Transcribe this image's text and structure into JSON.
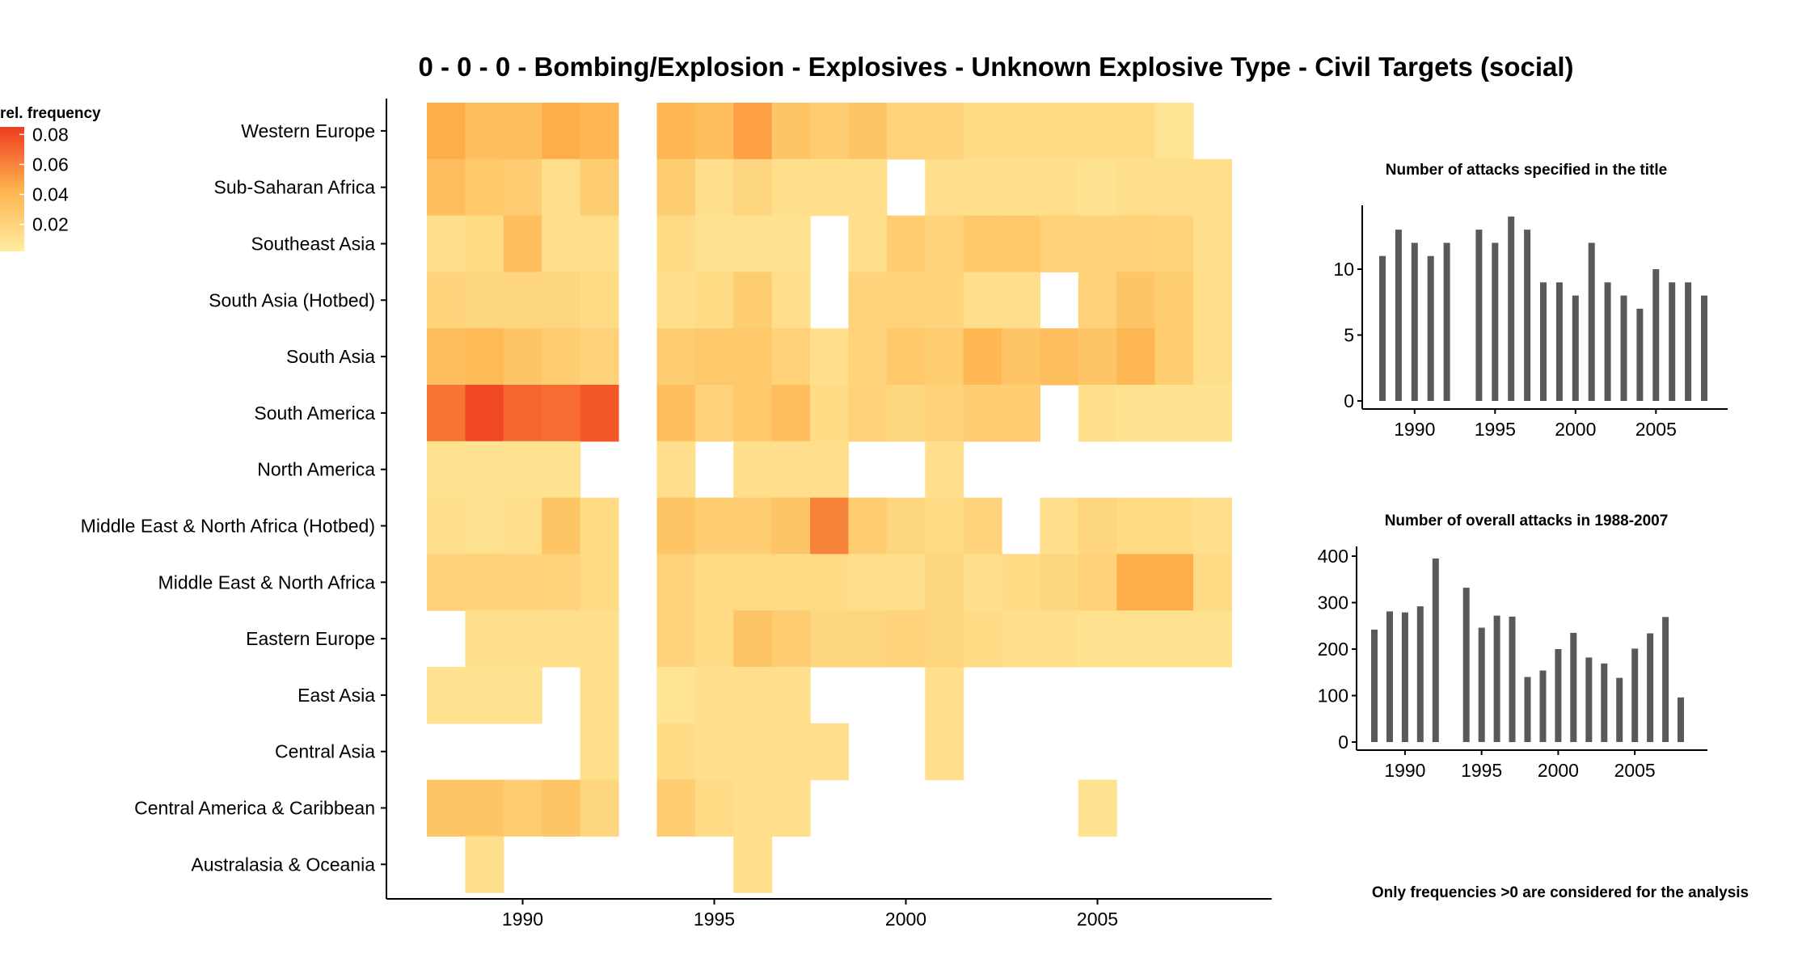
{
  "chart_data": [
    {
      "type": "heatmap",
      "title": "0 - 0 - 0 - Bombing/Explosion - Explosives - Unknown Explosive Type - Civil Targets (social)",
      "xlabel": "",
      "ylabel": "",
      "xlim": [
        1987.5,
        2008.5
      ],
      "x_ticks": [
        1990,
        1995,
        2000,
        2005
      ],
      "years": [
        1988,
        1989,
        1990,
        1991,
        1992,
        1993,
        1994,
        1995,
        1996,
        1997,
        1998,
        1999,
        2000,
        2001,
        2002,
        2003,
        2004,
        2005,
        2006,
        2007,
        2008
      ],
      "rows": [
        "Western Europe",
        "Sub-Saharan Africa",
        "Southeast Asia",
        "South Asia (Hotbed)",
        "South Asia",
        "South America",
        "North America",
        "Middle East & North Africa (Hotbed)",
        "Middle East & North Africa",
        "Eastern Europe",
        "East Asia",
        "Central Asia",
        "Central America & Caribbean",
        "Australasia & Oceania"
      ],
      "values": [
        [
          0.045,
          0.035,
          0.035,
          0.045,
          0.04,
          null,
          0.04,
          0.035,
          0.05,
          0.03,
          0.025,
          0.03,
          0.02,
          0.02,
          0.015,
          0.015,
          0.015,
          0.015,
          0.015,
          0.008,
          null
        ],
        [
          0.035,
          0.028,
          0.025,
          0.012,
          0.025,
          null,
          0.025,
          0.012,
          0.018,
          0.012,
          0.012,
          0.012,
          null,
          0.012,
          0.012,
          0.012,
          0.012,
          0.01,
          0.012,
          0.012,
          0.012
        ],
        [
          0.012,
          0.015,
          0.035,
          0.012,
          0.012,
          null,
          0.015,
          0.01,
          0.01,
          0.01,
          null,
          0.012,
          0.025,
          0.02,
          0.028,
          0.028,
          0.022,
          0.022,
          0.022,
          0.02,
          0.012
        ],
        [
          0.02,
          0.018,
          0.018,
          0.018,
          0.015,
          null,
          0.012,
          0.015,
          0.025,
          0.012,
          null,
          0.02,
          0.02,
          0.02,
          0.012,
          0.012,
          null,
          0.022,
          0.03,
          0.025,
          0.012
        ],
        [
          0.035,
          0.038,
          0.03,
          0.025,
          0.022,
          null,
          0.025,
          0.028,
          0.028,
          0.022,
          0.012,
          0.02,
          0.028,
          0.025,
          0.04,
          0.03,
          0.035,
          0.03,
          0.04,
          0.025,
          0.012
        ],
        [
          0.065,
          0.08,
          0.07,
          0.068,
          0.075,
          null,
          0.035,
          0.022,
          0.028,
          0.035,
          0.015,
          0.022,
          0.018,
          0.022,
          0.025,
          0.025,
          null,
          0.012,
          0.01,
          0.01,
          0.01
        ],
        [
          0.01,
          0.01,
          0.01,
          0.01,
          null,
          null,
          0.012,
          null,
          0.012,
          0.012,
          0.012,
          null,
          null,
          0.012,
          null,
          null,
          null,
          null,
          null,
          null,
          null
        ],
        [
          0.012,
          0.01,
          0.012,
          0.03,
          0.015,
          null,
          0.03,
          0.025,
          0.025,
          0.03,
          0.06,
          0.025,
          0.018,
          0.015,
          0.02,
          null,
          0.012,
          0.018,
          0.015,
          0.015,
          0.012
        ],
        [
          0.022,
          0.022,
          0.022,
          0.02,
          0.015,
          null,
          0.02,
          0.015,
          0.015,
          0.015,
          0.015,
          0.012,
          0.012,
          0.018,
          0.012,
          0.015,
          0.018,
          0.022,
          0.045,
          0.045,
          0.015
        ],
        [
          null,
          0.012,
          0.012,
          0.012,
          0.012,
          null,
          0.02,
          0.015,
          0.03,
          0.025,
          0.018,
          0.018,
          0.02,
          0.018,
          0.015,
          0.012,
          0.012,
          0.01,
          0.01,
          0.01,
          0.01
        ],
        [
          0.01,
          0.01,
          0.01,
          null,
          0.012,
          null,
          0.008,
          0.012,
          0.012,
          0.012,
          null,
          null,
          null,
          0.012,
          null,
          null,
          null,
          null,
          null,
          null,
          null
        ],
        [
          null,
          null,
          null,
          null,
          0.012,
          null,
          0.015,
          0.012,
          0.012,
          0.012,
          0.012,
          null,
          null,
          0.012,
          null,
          null,
          null,
          null,
          null,
          null,
          null
        ],
        [
          0.03,
          0.03,
          0.025,
          0.03,
          0.018,
          null,
          0.025,
          0.015,
          0.012,
          0.012,
          null,
          null,
          null,
          null,
          null,
          null,
          null,
          0.01,
          null,
          null,
          null
        ],
        [
          null,
          0.012,
          null,
          null,
          null,
          null,
          null,
          null,
          0.012,
          null,
          null,
          null,
          null,
          null,
          null,
          null,
          null,
          null,
          null,
          null,
          null
        ]
      ],
      "legend": {
        "title": "rel. frequency",
        "range": [
          0.002,
          0.085
        ],
        "ticks": [
          "0.08",
          "0.06",
          "0.04",
          "0.02"
        ],
        "tick_values": [
          0.08,
          0.06,
          0.04,
          0.02
        ],
        "placement": "top-left",
        "colors": [
          "#FFEDA0",
          "#FEB24C",
          "#F03B20"
        ]
      },
      "grid": false
    },
    {
      "type": "bar",
      "title": "Number of attacks specified in the title",
      "x": [
        1988,
        1989,
        1990,
        1991,
        1992,
        1994,
        1995,
        1996,
        1997,
        1998,
        1999,
        2000,
        2001,
        2002,
        2003,
        2004,
        2005,
        2006,
        2007,
        2008
      ],
      "values": [
        11,
        13,
        12,
        11,
        12,
        13,
        12,
        14,
        13,
        9,
        9,
        8,
        12,
        9,
        8,
        7,
        10,
        9,
        9,
        8
      ],
      "ylim": [
        0,
        14
      ],
      "y_ticks": [
        0,
        5,
        10
      ],
      "x_ticks": [
        1990,
        1995,
        2000,
        2005
      ],
      "bar_color": "#595959",
      "grid": false
    },
    {
      "type": "bar",
      "title": "Number of overall attacks in 1988-2007",
      "x": [
        1988,
        1989,
        1990,
        1991,
        1992,
        1994,
        1995,
        1996,
        1997,
        1998,
        1999,
        2000,
        2001,
        2002,
        2003,
        2004,
        2005,
        2006,
        2007,
        2008
      ],
      "values": [
        242,
        281,
        279,
        292,
        395,
        332,
        246,
        272,
        270,
        140,
        154,
        200,
        235,
        182,
        169,
        138,
        201,
        234,
        269,
        96
      ],
      "ylim": [
        0,
        400
      ],
      "y_ticks": [
        0,
        100,
        200,
        300,
        400
      ],
      "x_ticks": [
        1990,
        1995,
        2000,
        2005
      ],
      "bar_color": "#595959",
      "grid": false
    }
  ],
  "note": "Only frequencies >0 are considered for the analysis"
}
